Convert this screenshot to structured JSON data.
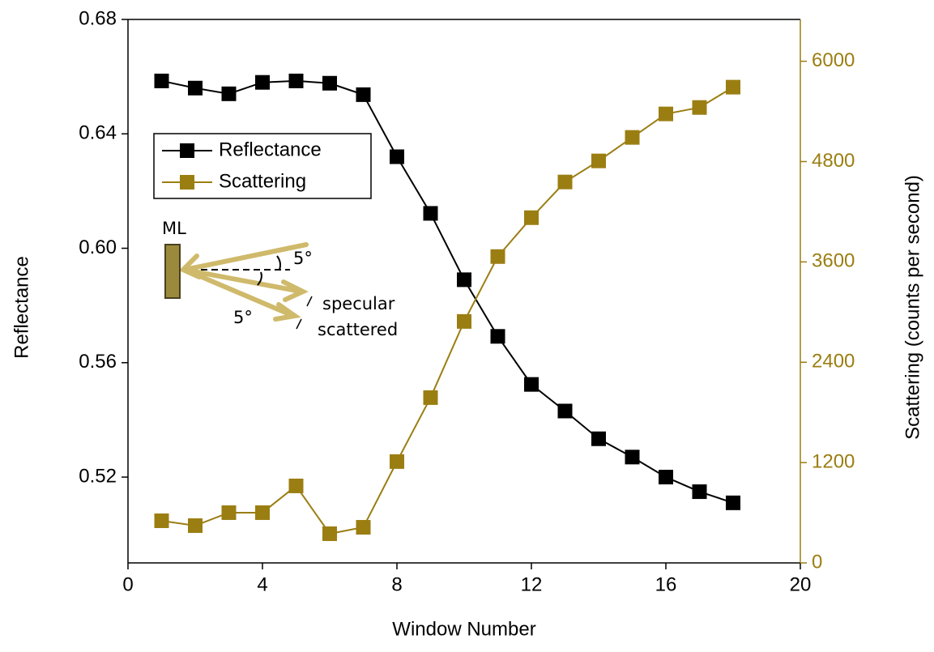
{
  "chart_data": {
    "type": "line",
    "x_label": "Window Number",
    "y_label": "Reflectance",
    "y2_label": "Scattering (counts per second)",
    "x": [
      1,
      2,
      3,
      4,
      5,
      6,
      7,
      8,
      9,
      10,
      11,
      12,
      13,
      14,
      15,
      16,
      17,
      18
    ],
    "series": [
      {
        "name": "Reflectance",
        "color": "#000000",
        "values": [
          0.6585,
          0.656,
          0.654,
          0.658,
          0.6585,
          0.6577,
          0.6537,
          0.632,
          0.6122,
          0.589,
          0.5692,
          0.5524,
          0.5431,
          0.5334,
          0.527,
          0.52,
          0.5149,
          0.511
        ]
      },
      {
        "name": "Scattering",
        "color": "#9b7e12",
        "axis": "y2",
        "values": [
          504,
          446,
          601,
          601,
          921,
          349,
          426,
          1212,
          1977,
          2888,
          3664,
          4129,
          4556,
          4808,
          5089,
          5370,
          5447,
          5690
        ]
      }
    ],
    "xlim": [
      0,
      20
    ],
    "xticks": [
      0,
      4,
      8,
      12,
      16,
      20
    ],
    "ylim": [
      0.49,
      0.68
    ],
    "yticks": [
      {
        "value": 0.52,
        "label": "0.52"
      },
      {
        "value": 0.56,
        "label": "0.56"
      },
      {
        "value": 0.6,
        "label": "0.60"
      },
      {
        "value": 0.64,
        "label": "0.64"
      },
      {
        "value": 0.68,
        "label": "0.68"
      }
    ],
    "y2lim": [
      0,
      6500
    ],
    "y2ticks": [
      0,
      1200,
      2400,
      3600,
      4800,
      6000
    ],
    "legend": "upper left",
    "annotations": {
      "ml": "ML",
      "angle_top": "5°",
      "angle_bottom": "5°",
      "specular": "specular",
      "scattered": "scattered"
    }
  }
}
